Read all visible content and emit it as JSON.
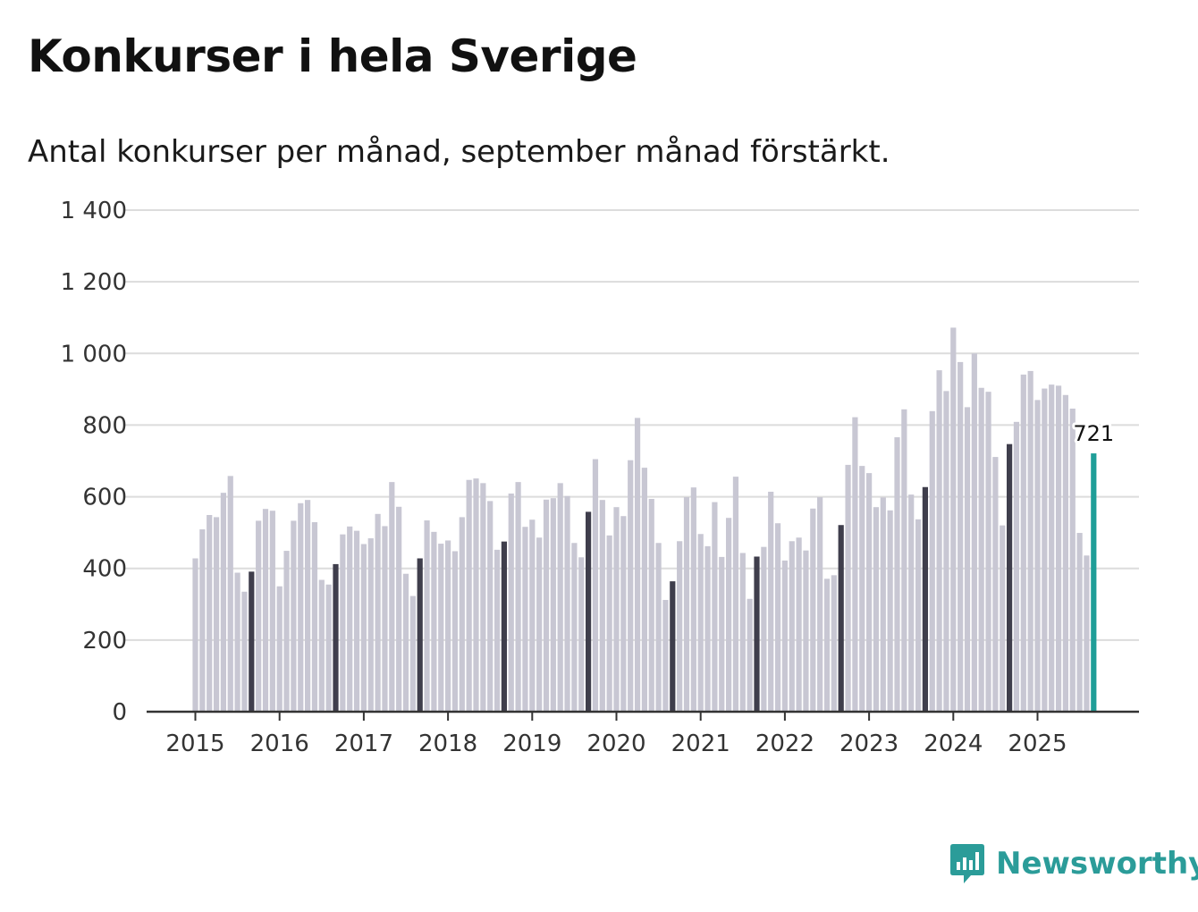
{
  "header": {
    "title": "Konkurser i hela Sverige",
    "subtitle": "Antal konkurser per månad, september månad förstärkt."
  },
  "brand": {
    "name": "Newsworthy"
  },
  "colors": {
    "bar": "#c8c7d3",
    "highlight": "#3f3e4c",
    "latest": "#1f9e98",
    "grid": "#dcdcdc",
    "axis": "#333333"
  },
  "chart_data": {
    "type": "bar",
    "title": "Konkurser i hela Sverige",
    "subtitle": "Antal konkurser per månad, september månad förstärkt.",
    "xlabel": "",
    "ylabel": "",
    "ylim": [
      0,
      1400
    ],
    "y_ticks": [
      0,
      200,
      400,
      600,
      800,
      1000,
      1200,
      1400
    ],
    "y_tick_labels": [
      "0",
      "200",
      "400",
      "600",
      "800",
      "1 000",
      "1 200",
      "1 400"
    ],
    "x_tick_labels": [
      "2015",
      "2016",
      "2017",
      "2018",
      "2019",
      "2020",
      "2021",
      "2022",
      "2023",
      "2024",
      "2025"
    ],
    "grid": true,
    "start": "2015-01",
    "highlight_month": "september",
    "latest_label": "721",
    "series": [
      {
        "name": "2015",
        "values": [
          428,
          509,
          549,
          543,
          611,
          658,
          388,
          335,
          391,
          533,
          566,
          561
        ]
      },
      {
        "name": "2016",
        "values": [
          350,
          449,
          533,
          582,
          591,
          529,
          368,
          355,
          412,
          495,
          517,
          505
        ]
      },
      {
        "name": "2017",
        "values": [
          468,
          484,
          552,
          518,
          641,
          572,
          385,
          323,
          428,
          534,
          502,
          469
        ]
      },
      {
        "name": "2018",
        "values": [
          478,
          448,
          543,
          647,
          651,
          638,
          588,
          452,
          475,
          609,
          641,
          516
        ]
      },
      {
        "name": "2019",
        "values": [
          536,
          486,
          592,
          596,
          638,
          602,
          471,
          431,
          558,
          705,
          591,
          492
        ]
      },
      {
        "name": "2020",
        "values": [
          571,
          546,
          702,
          820,
          681,
          594,
          471,
          312,
          364,
          476,
          599,
          626
        ]
      },
      {
        "name": "2021",
        "values": [
          496,
          462,
          585,
          432,
          541,
          656,
          443,
          315,
          433,
          460,
          614,
          526
        ]
      },
      {
        "name": "2022",
        "values": [
          422,
          476,
          486,
          450,
          567,
          599,
          371,
          381,
          521,
          689,
          822,
          686
        ]
      },
      {
        "name": "2023",
        "values": [
          666,
          571,
          598,
          562,
          766,
          844,
          606,
          537,
          627,
          839,
          953,
          895
        ]
      },
      {
        "name": "2024",
        "values": [
          1072,
          976,
          850,
          1000,
          904,
          893,
          711,
          520,
          747,
          809,
          941,
          951
        ]
      },
      {
        "name": "2025",
        "values": [
          870,
          902,
          913,
          910,
          884,
          846,
          499,
          436,
          721
        ]
      }
    ]
  }
}
